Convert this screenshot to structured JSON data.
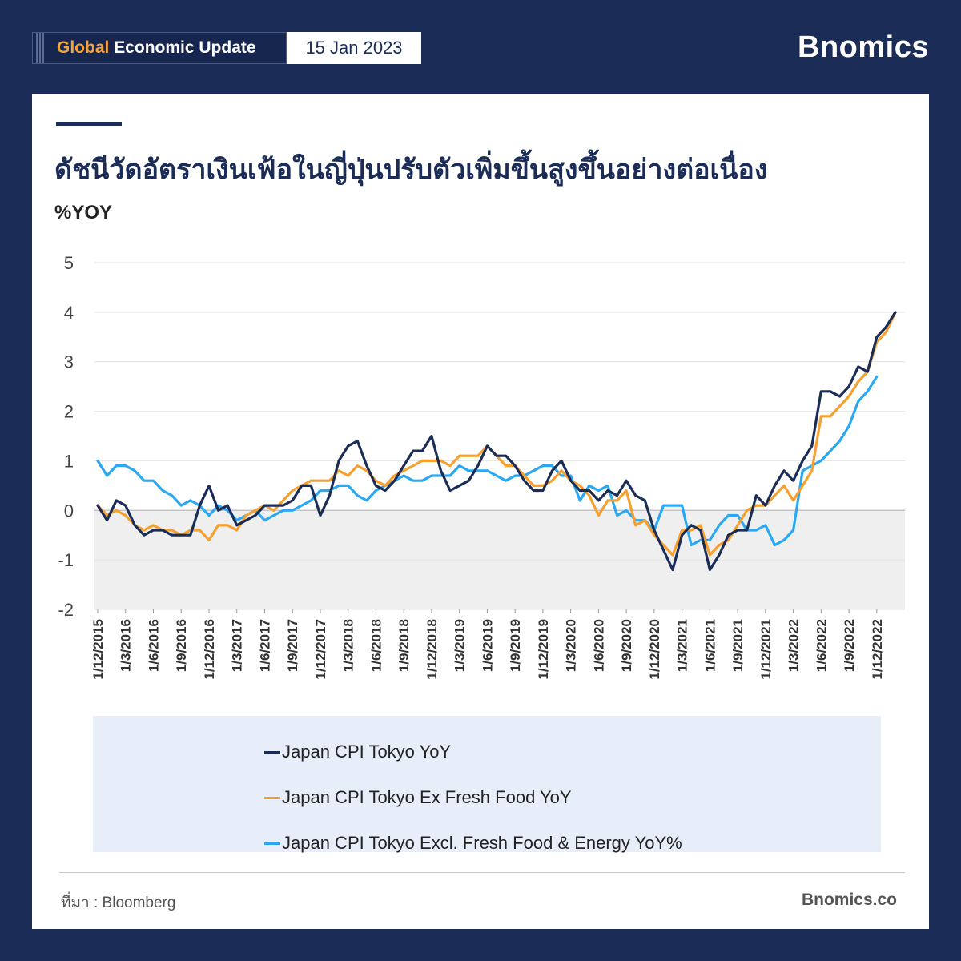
{
  "header": {
    "badge_highlight": "Global",
    "badge_rest": "Economic Update",
    "date": "15 Jan 2023",
    "brand": "Bnomics"
  },
  "colors": {
    "navy": "#1b2c57",
    "orange": "#f6a02f",
    "blue": "#2aa8f2",
    "background": "#1b2c57",
    "legend_bg": "#e8eef9"
  },
  "chart_data": {
    "type": "line",
    "title": "ดัชนีวัดอัตราเงินเฟ้อในญี่ปุ่นปรับตัวเพิ่มขึ้นสูงขึ้นอย่างต่อเนื่อง",
    "ylabel": "%YOY",
    "ylim": [
      -2,
      5
    ],
    "yticks": [
      -2,
      -1,
      0,
      1,
      2,
      3,
      4,
      5
    ],
    "x_tick_labels": [
      "1/12/2015",
      "1/3/2016",
      "1/6/2016",
      "1/9/2016",
      "1/12/2016",
      "1/3/2017",
      "1/6/2017",
      "1/9/2017",
      "1/12/2017",
      "1/3/2018",
      "1/6/2018",
      "1/9/2018",
      "1/12/2018",
      "1/3/2019",
      "1/6/2019",
      "1/9/2019",
      "1/12/2019",
      "1/3/2020",
      "1/6/2020",
      "1/9/2020",
      "1/12/2020",
      "1/3/2021",
      "1/6/2021",
      "1/9/2021",
      "1/12/2021",
      "1/3/2022",
      "1/6/2022",
      "1/9/2022",
      "1/12/2022"
    ],
    "x_start": "2015-12",
    "x_end": "2022-12",
    "negative_region_shaded": true,
    "legend_position": "bottom",
    "series": [
      {
        "name": "Japan CPI Tokyo YoY",
        "color": "#1b2c57",
        "values": [
          0.1,
          -0.2,
          0.2,
          0.1,
          -0.3,
          -0.5,
          -0.4,
          -0.4,
          -0.5,
          -0.5,
          -0.5,
          0.1,
          0.5,
          0.0,
          0.1,
          -0.3,
          -0.2,
          -0.1,
          0.1,
          0.1,
          0.1,
          0.2,
          0.5,
          0.5,
          -0.1,
          0.3,
          1.0,
          1.3,
          1.4,
          0.9,
          0.5,
          0.4,
          0.6,
          0.9,
          1.2,
          1.2,
          1.5,
          0.8,
          0.4,
          0.5,
          0.6,
          0.9,
          1.3,
          1.1,
          1.1,
          0.9,
          0.6,
          0.4,
          0.4,
          0.8,
          1.0,
          0.6,
          0.4,
          0.4,
          0.2,
          0.4,
          0.3,
          0.6,
          0.3,
          0.2,
          -0.4,
          -0.8,
          -1.2,
          -0.5,
          -0.3,
          -0.4,
          -1.2,
          -0.9,
          -0.5,
          -0.4,
          -0.4,
          0.3,
          0.1,
          0.5,
          0.8,
          0.6,
          1.0,
          1.3,
          2.4,
          2.4,
          2.3,
          2.5,
          2.9,
          2.8,
          3.5,
          3.7,
          4.0
        ]
      },
      {
        "name": "Japan CPI Tokyo Ex Fresh Food YoY",
        "color": "#f6a02f",
        "values": [
          0.1,
          -0.1,
          0.0,
          -0.1,
          -0.3,
          -0.4,
          -0.3,
          -0.4,
          -0.4,
          -0.5,
          -0.4,
          -0.4,
          -0.6,
          -0.3,
          -0.3,
          -0.4,
          -0.1,
          0.0,
          0.1,
          0.0,
          0.2,
          0.4,
          0.5,
          0.6,
          0.6,
          0.6,
          0.8,
          0.7,
          0.9,
          0.8,
          0.6,
          0.5,
          0.7,
          0.8,
          0.9,
          1.0,
          1.0,
          1.0,
          0.9,
          1.1,
          1.1,
          1.1,
          1.3,
          1.1,
          0.9,
          0.9,
          0.7,
          0.5,
          0.5,
          0.6,
          0.8,
          0.6,
          0.5,
          0.3,
          -0.1,
          0.2,
          0.2,
          0.4,
          -0.3,
          -0.2,
          -0.5,
          -0.7,
          -0.9,
          -0.4,
          -0.4,
          -0.3,
          -0.9,
          -0.7,
          -0.6,
          -0.3,
          0.0,
          0.1,
          0.1,
          0.3,
          0.5,
          0.2,
          0.5,
          0.8,
          1.9,
          1.9,
          2.1,
          2.3,
          2.6,
          2.8,
          3.4,
          3.6,
          4.0
        ]
      },
      {
        "name": "Japan CPI Tokyo Excl. Fresh Food & Energy YoY%",
        "color": "#2aa8f2",
        "values": [
          1.0,
          0.7,
          0.9,
          0.9,
          0.8,
          0.6,
          0.6,
          0.4,
          0.3,
          0.1,
          0.2,
          0.1,
          -0.1,
          0.1,
          0.0,
          -0.2,
          -0.1,
          0.0,
          -0.2,
          -0.1,
          0.0,
          0.0,
          0.1,
          0.2,
          0.4,
          0.4,
          0.5,
          0.5,
          0.3,
          0.2,
          0.4,
          0.5,
          0.6,
          0.7,
          0.6,
          0.6,
          0.7,
          0.7,
          0.7,
          0.9,
          0.8,
          0.8,
          0.8,
          0.7,
          0.6,
          0.7,
          0.7,
          0.8,
          0.9,
          0.9,
          0.7,
          0.7,
          0.2,
          0.5,
          0.4,
          0.5,
          -0.1,
          0.0,
          -0.2,
          -0.2,
          -0.4,
          0.1,
          0.1,
          0.1,
          -0.7,
          -0.6,
          -0.6,
          -0.3,
          -0.1,
          -0.1,
          -0.4,
          -0.4,
          -0.3,
          -0.7,
          -0.6,
          -0.4,
          0.8,
          0.9,
          1.0,
          1.2,
          1.4,
          1.7,
          2.2,
          2.4,
          2.7
        ]
      }
    ]
  },
  "legend": {
    "items": [
      "Japan CPI Tokyo YoY",
      "Japan CPI Tokyo Ex Fresh Food YoY",
      "Japan CPI Tokyo Excl. Fresh Food & Energy YoY%"
    ]
  },
  "footer": {
    "source": "ที่มา : Bloomberg",
    "site": "Bnomics.co"
  }
}
